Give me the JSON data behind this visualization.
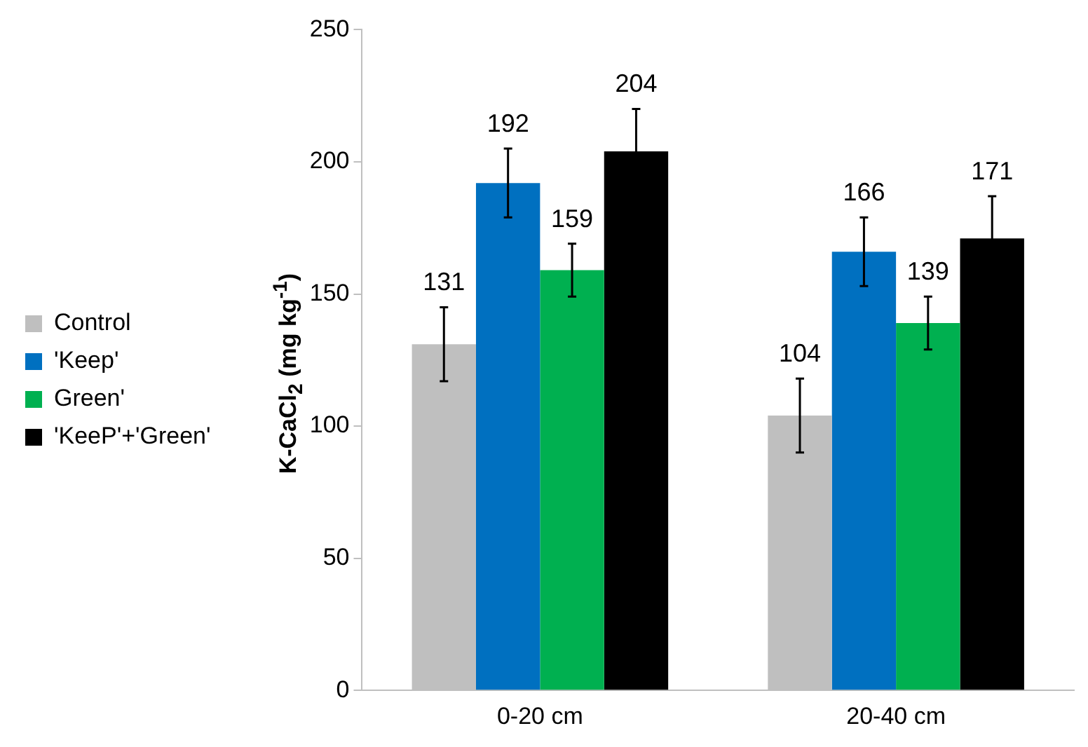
{
  "chart_data": {
    "type": "bar",
    "ylabel": "K-CaCl$_{2}$ (mg kg$^{-1}$)",
    "categories": [
      "0-20 cm",
      "20-40 cm"
    ],
    "series": [
      {
        "name": "Control",
        "color": "#bfbfbf",
        "values": [
          131,
          104
        ],
        "errors": [
          14,
          14
        ]
      },
      {
        "name": "'Keep'",
        "color": "#0070c0",
        "values": [
          192,
          166
        ],
        "errors": [
          13,
          13
        ]
      },
      {
        "name": "Green'",
        "color": "#00b050",
        "values": [
          159,
          139
        ],
        "errors": [
          10,
          10
        ]
      },
      {
        "name": "'KeeP'+'Green'",
        "color": "#000000",
        "values": [
          204,
          171
        ],
        "errors": [
          16,
          16
        ]
      }
    ],
    "ylim": [
      0,
      250
    ],
    "yticks": [
      0,
      50,
      100,
      150,
      200,
      250
    ],
    "grid": false,
    "legend": "left",
    "data_labels": true
  }
}
